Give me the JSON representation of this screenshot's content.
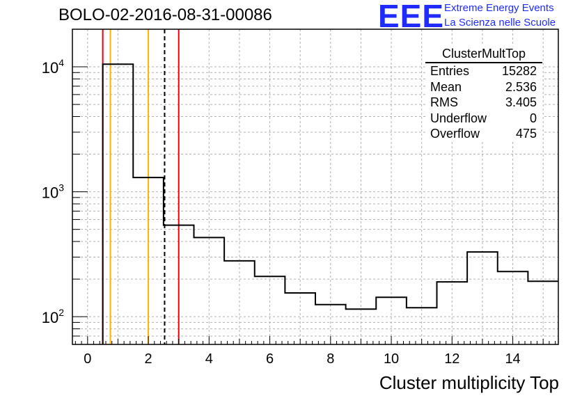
{
  "header": {
    "title": "BOLO-02-2016-08-31-00086",
    "logo_text": "EEE",
    "logo_line1": "Extreme Energy Events",
    "logo_line2": "La Scienza nelle Scuole",
    "logo_color": "#1f2bff"
  },
  "stats": {
    "title": "ClusterMultTop",
    "rows": [
      {
        "label": "Entries",
        "value": "15282"
      },
      {
        "label": "Mean",
        "value": "2.536"
      },
      {
        "label": "RMS",
        "value": "3.405"
      },
      {
        "label": "Underflow",
        "value": "0"
      },
      {
        "label": "Overflow",
        "value": "475"
      }
    ]
  },
  "chart_data": {
    "type": "bar",
    "histogram": true,
    "xlabel": "Cluster multiplicity Top",
    "ylabel": "",
    "xlim": [
      -0.5,
      15.5
    ],
    "ylim": [
      60,
      20000
    ],
    "yscale": "log",
    "grid": true,
    "bin_edges": [
      0.5,
      1.5,
      2.5,
      3.5,
      4.5,
      5.5,
      6.5,
      7.5,
      8.5,
      9.5,
      10.5,
      11.5,
      12.5,
      13.5,
      14.5,
      15.5
    ],
    "values": [
      10500,
      1300,
      540,
      430,
      280,
      210,
      155,
      125,
      115,
      143,
      118,
      190,
      330,
      230,
      192
    ],
    "x_ticks": [
      "0",
      "2",
      "4",
      "6",
      "8",
      "10",
      "12",
      "14"
    ],
    "y_ticks": [
      {
        "value": 100,
        "label": "10",
        "exp": "2"
      },
      {
        "value": 1000,
        "label": "10",
        "exp": "3"
      },
      {
        "value": 10000,
        "label": "10",
        "exp": "4"
      }
    ],
    "vertical_lines": [
      {
        "x": 0.5,
        "color": "#e8000b",
        "style": "solid"
      },
      {
        "x": 0.75,
        "color": "#ffb300",
        "style": "solid"
      },
      {
        "x": 2.0,
        "color": "#ffb300",
        "style": "solid"
      },
      {
        "x": 2.536,
        "color": "#000000",
        "style": "dashed"
      },
      {
        "x": 3.0,
        "color": "#e8000b",
        "style": "solid"
      }
    ]
  }
}
